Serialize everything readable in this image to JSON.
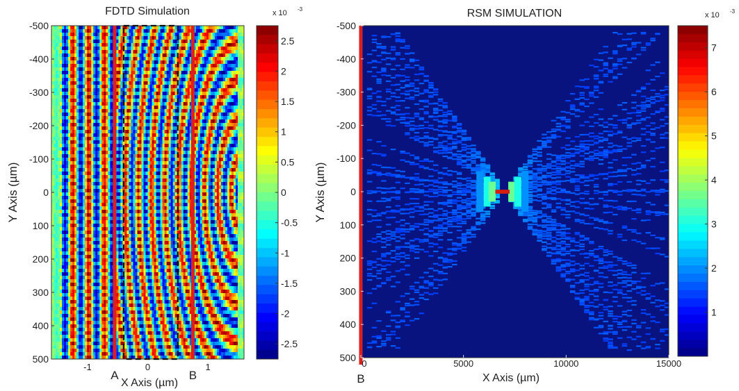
{
  "chart_data": [
    {
      "type": "heatmap",
      "title": "FDTD Simulation",
      "xlabel": "X Axis (µm)",
      "ylabel": "Y Axis (µm)",
      "xlim": [
        -1.6,
        1.6
      ],
      "ylim": [
        500,
        -500
      ],
      "x_ticks": [
        -1,
        0,
        1
      ],
      "x_tick_labels": [
        "-1",
        "0",
        "1"
      ],
      "y_ticks": [
        -500,
        -400,
        -300,
        -200,
        -100,
        0,
        100,
        200,
        300,
        400,
        500
      ],
      "y_tick_labels": [
        "-500",
        "-400",
        "-300",
        "-200",
        "-100",
        "0",
        "100",
        "200",
        "300",
        "400",
        "500"
      ],
      "colorbar": {
        "range": [
          -2.75,
          2.75
        ],
        "exponent_label": "x 10",
        "exponent_power": "-3",
        "ticks": [
          2.5,
          2,
          1.5,
          1,
          0.5,
          0,
          -0.5,
          -1,
          -1.5,
          -2,
          -2.5
        ],
        "tick_labels": [
          "2.5",
          "2",
          "1.5",
          "1",
          "0.5",
          "0",
          "-0.5",
          "-1",
          "-1.5",
          "-2",
          "-2.5"
        ]
      },
      "markers": [
        {
          "label": "A",
          "x": -0.55,
          "color": "#dd1f1f"
        },
        {
          "label": "B",
          "x": 0.75,
          "color": "#dd1f1f"
        }
      ],
      "dashed_region": {
        "x": [
          -0.4,
          0.5
        ],
        "y": [
          -500,
          500
        ]
      }
    },
    {
      "type": "heatmap",
      "title": "RSM SIMULATION",
      "xlabel": "X Axis (µm)",
      "ylabel": "Y Axis (µm)",
      "xlim": [
        0,
        15000
      ],
      "ylim": [
        500,
        -500
      ],
      "x_ticks": [
        0,
        5000,
        10000,
        15000
      ],
      "x_tick_labels": [
        "0",
        "5000",
        "10000",
        "15000"
      ],
      "y_ticks": [
        -500,
        -400,
        -300,
        -200,
        -100,
        0,
        100,
        200,
        300,
        400,
        500
      ],
      "y_tick_labels": [
        "-500",
        "-400",
        "-300",
        "-200",
        "-100",
        "0",
        "100",
        "200",
        "300",
        "400",
        "500"
      ],
      "focus": {
        "x": 6900,
        "y": 0
      },
      "colorbar": {
        "range": [
          0,
          7.5
        ],
        "exponent_label": "x 10",
        "exponent_power": "-3",
        "ticks": [
          7,
          6,
          5,
          4,
          3,
          2,
          1
        ],
        "tick_labels": [
          "7",
          "6",
          "5",
          "4",
          "3",
          "2",
          "1"
        ]
      },
      "markers": [
        {
          "label": "B",
          "x": 0,
          "color": "#dd1f1f"
        }
      ]
    }
  ]
}
